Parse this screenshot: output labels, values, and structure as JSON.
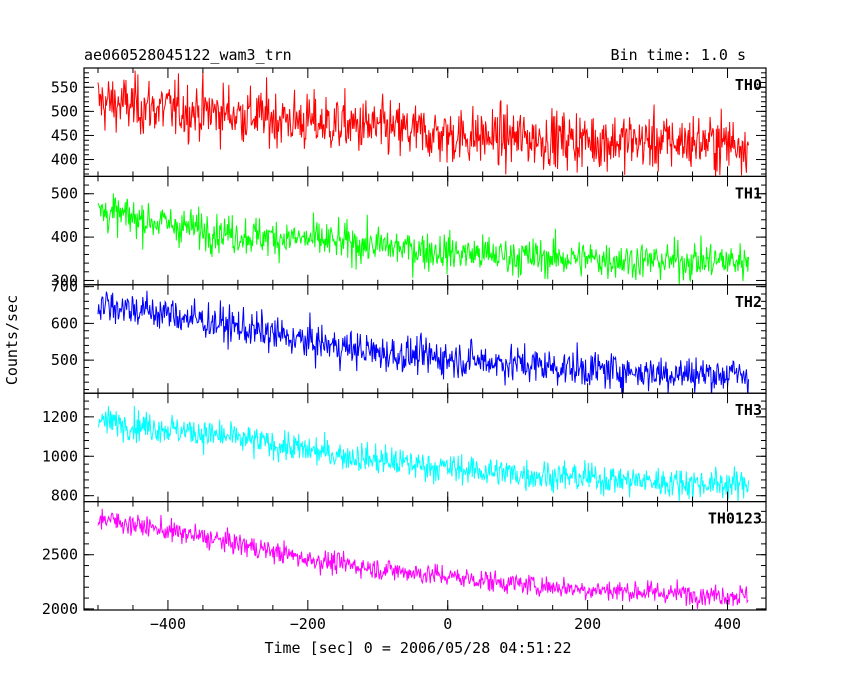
{
  "header": {
    "title": "ae060528045122_wam3_trn",
    "bin_time": "Bin time: 1.0 s"
  },
  "chart_data": {
    "type": "line",
    "title": "ae060528045122_wam3_trn",
    "subtitle": "Bin time: 1.0 s",
    "xlabel": "Time [sec] 0 = 2006/05/28 04:51:22",
    "ylabel": "Counts/sec",
    "xlim": [
      -520,
      455
    ],
    "x_range": [
      -500,
      430
    ],
    "x_ticks": [
      -400,
      -200,
      0,
      200,
      400
    ],
    "x_tick_labels": [
      "−400",
      "−200",
      "0",
      "200",
      "400"
    ],
    "grid": false,
    "panels": [
      {
        "name": "TH0",
        "color": "#ff0000",
        "ylim": [
          365,
          590
        ],
        "y_ticks": [
          400,
          450,
          500,
          550
        ],
        "y_tick_labels": [
          "400",
          "450",
          "500",
          "550"
        ],
        "trend": [
          [
            -500,
            520
          ],
          [
            -400,
            505
          ],
          [
            -300,
            495
          ],
          [
            -200,
            478
          ],
          [
            -100,
            465
          ],
          [
            0,
            450
          ],
          [
            100,
            445
          ],
          [
            200,
            440
          ],
          [
            300,
            437
          ],
          [
            430,
            435
          ]
        ],
        "noise": 30
      },
      {
        "name": "TH1",
        "color": "#00ff00",
        "ylim": [
          290,
          540
        ],
        "y_ticks": [
          300,
          400,
          500
        ],
        "y_tick_labels": [
          "300",
          "400",
          "500"
        ],
        "trend": [
          [
            -500,
            460
          ],
          [
            -400,
            430
          ],
          [
            -300,
            405
          ],
          [
            -200,
            395
          ],
          [
            -100,
            380
          ],
          [
            0,
            365
          ],
          [
            100,
            355
          ],
          [
            200,
            350
          ],
          [
            300,
            345
          ],
          [
            430,
            345
          ]
        ],
        "noise": 22
      },
      {
        "name": "TH2",
        "color": "#0000ff",
        "ylim": [
          410,
          705
        ],
        "y_ticks": [
          500,
          600,
          700
        ],
        "y_tick_labels": [
          "500",
          "600",
          "700"
        ],
        "trend": [
          [
            -500,
            655
          ],
          [
            -400,
            625
          ],
          [
            -300,
            590
          ],
          [
            -200,
            550
          ],
          [
            -100,
            520
          ],
          [
            0,
            505
          ],
          [
            100,
            490
          ],
          [
            200,
            475
          ],
          [
            300,
            465
          ],
          [
            430,
            460
          ]
        ],
        "noise": 25
      },
      {
        "name": "TH3",
        "color": "#00ffff",
        "ylim": [
          770,
          1320
        ],
        "y_ticks": [
          800,
          1000,
          1200
        ],
        "y_tick_labels": [
          "800",
          "1000",
          "1200"
        ],
        "trend": [
          [
            -500,
            1180
          ],
          [
            -400,
            1140
          ],
          [
            -300,
            1090
          ],
          [
            -200,
            1030
          ],
          [
            -100,
            980
          ],
          [
            0,
            940
          ],
          [
            100,
            910
          ],
          [
            200,
            890
          ],
          [
            300,
            870
          ],
          [
            430,
            855
          ]
        ],
        "noise": 38
      },
      {
        "name": "TH0123",
        "color": "#ff00ff",
        "ylim": [
          1990,
          2990
        ],
        "y_ticks": [
          2000,
          2500
        ],
        "y_tick_labels": [
          "2000",
          "2500"
        ],
        "trend": [
          [
            -500,
            2840
          ],
          [
            -400,
            2720
          ],
          [
            -300,
            2600
          ],
          [
            -200,
            2460
          ],
          [
            -100,
            2370
          ],
          [
            0,
            2300
          ],
          [
            100,
            2230
          ],
          [
            200,
            2180
          ],
          [
            300,
            2150
          ],
          [
            430,
            2120
          ]
        ],
        "noise": 50
      }
    ]
  }
}
